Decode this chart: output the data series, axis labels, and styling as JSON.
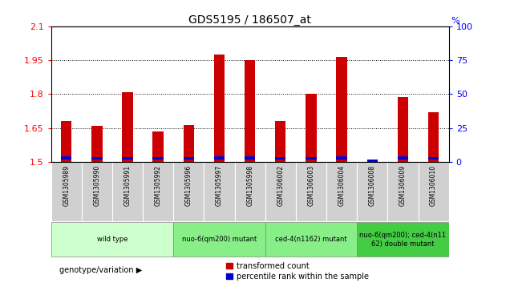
{
  "title": "GDS5195 / 186507_at",
  "samples": [
    "GSM1305989",
    "GSM1305990",
    "GSM1305991",
    "GSM1305992",
    "GSM1305996",
    "GSM1305997",
    "GSM1305998",
    "GSM1306002",
    "GSM1306003",
    "GSM1306004",
    "GSM1306008",
    "GSM1306009",
    "GSM1306010"
  ],
  "red_values": [
    1.68,
    1.66,
    1.81,
    1.635,
    1.665,
    1.975,
    1.95,
    1.68,
    1.8,
    1.965,
    1.51,
    1.787,
    1.72
  ],
  "blue_heights": [
    0.012,
    0.01,
    0.01,
    0.01,
    0.011,
    0.012,
    0.012,
    0.01,
    0.011,
    0.013,
    0.008,
    0.012,
    0.011
  ],
  "blue_bottoms": [
    1.512,
    1.512,
    1.512,
    1.512,
    1.512,
    1.512,
    1.512,
    1.512,
    1.512,
    1.512,
    1.502,
    1.512,
    1.512
  ],
  "y_min": 1.5,
  "y_max": 2.1,
  "y_ticks_left": [
    1.5,
    1.65,
    1.8,
    1.95,
    2.1
  ],
  "y_ticks_right": [
    0,
    25,
    50,
    75,
    100
  ],
  "groups": [
    {
      "label": "wild type",
      "start": 0,
      "end": 4
    },
    {
      "label": "nuo-6(qm200) mutant",
      "start": 4,
      "end": 7
    },
    {
      "label": "ced-4(n1162) mutant",
      "start": 7,
      "end": 10
    },
    {
      "label": "nuo-6(qm200); ced-4(n11\n62) double mutant",
      "start": 10,
      "end": 13
    }
  ],
  "group_colors": [
    "#ccffcc",
    "#88ee88",
    "#88ee88",
    "#44cc44"
  ],
  "bar_width": 0.35,
  "bar_color_red": "#cc0000",
  "bar_color_blue": "#0000cc",
  "legend_red": "transformed count",
  "legend_blue": "percentile rank within the sample",
  "genotype_label": "genotype/variation",
  "xtick_bg": "#d0d0d0",
  "group_separator_color": "#aaaaaa"
}
